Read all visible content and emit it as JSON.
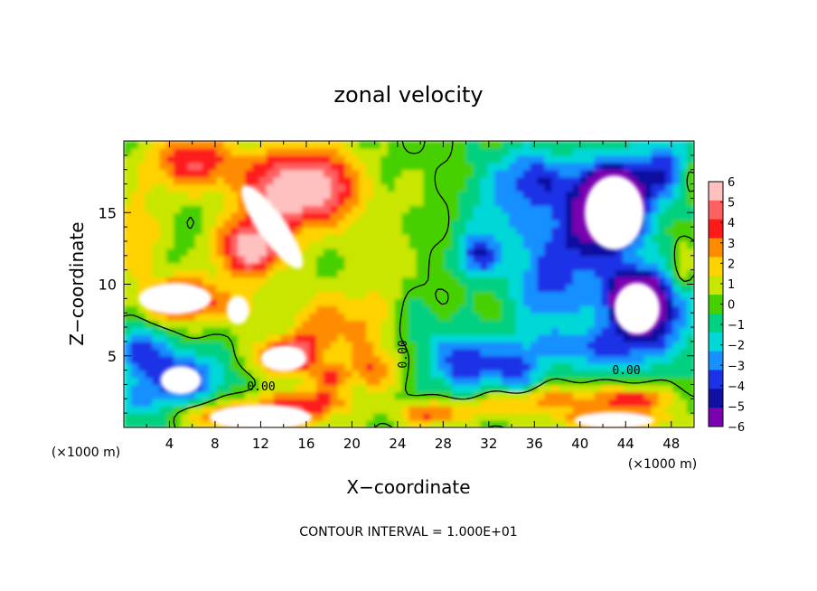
{
  "chart_data": {
    "type": "heatmap",
    "title": "zonal velocity",
    "xlabel": "X−coordinate",
    "ylabel": "Z−coordinate",
    "x_unit_label": "(×1000 m)",
    "y_unit_label": "(×1000 m)",
    "xlim": [
      0,
      50
    ],
    "ylim": [
      0,
      20
    ],
    "x_ticks": [
      "4",
      "8",
      "12",
      "16",
      "20",
      "24",
      "28",
      "32",
      "36",
      "40",
      "44",
      "48"
    ],
    "y_ticks": [
      "5",
      "10",
      "15"
    ],
    "footer": "CONTOUR INTERVAL = 1.000E+01",
    "contour_labels": [
      "0.00",
      "0.00",
      "0.00"
    ],
    "colorbar": {
      "labels": [
        "6",
        "5",
        "4",
        "3",
        "2",
        "1",
        "0",
        "−1",
        "−2",
        "−3",
        "−4",
        "−5",
        "−6"
      ],
      "colors": [
        "#ffc0c0",
        "#ff6060",
        "#ff1a1a",
        "#ff8c00",
        "#ffd200",
        "#c8e600",
        "#46d000",
        "#00d080",
        "#00d8d8",
        "#1890ff",
        "#1c32e6",
        "#1010a0",
        "#7a00b0"
      ],
      "range": [
        -6,
        6
      ]
    },
    "blobs": [
      {
        "x": 14,
        "y": 16.5,
        "v": 6.0,
        "sx": 3.8,
        "sy": 3.0
      },
      {
        "x": 6,
        "y": 18.5,
        "v": 4.5,
        "sx": 4.0,
        "sy": 2.0
      },
      {
        "x": 18,
        "y": 17.0,
        "v": 4.0,
        "sx": 3.0,
        "sy": 2.5
      },
      {
        "x": 11,
        "y": 12.5,
        "v": 6.0,
        "sx": 3.0,
        "sy": 2.0
      },
      {
        "x": 5,
        "y": 9.0,
        "v": 6.0,
        "sx": 3.0,
        "sy": 1.5
      },
      {
        "x": 1,
        "y": 13.5,
        "v": 2.5,
        "sx": 2.5,
        "sy": 3.0
      },
      {
        "x": 14,
        "y": 5.0,
        "v": 6.0,
        "sx": 2.5,
        "sy": 1.2
      },
      {
        "x": 17,
        "y": 7.0,
        "v": 3.0,
        "sx": 2.5,
        "sy": 2.5
      },
      {
        "x": 21,
        "y": 7.0,
        "v": 2.0,
        "sx": 2.5,
        "sy": 2.5
      },
      {
        "x": 10,
        "y": 8.5,
        "v": 2.0,
        "sx": 2.5,
        "sy": 1.5
      },
      {
        "x": 22,
        "y": 4.0,
        "v": 3.0,
        "sx": 2.0,
        "sy": 1.5
      },
      {
        "x": 16,
        "y": 1.8,
        "v": 4.0,
        "sx": 4.0,
        "sy": 0.9
      },
      {
        "x": 9,
        "y": 1.0,
        "v": 2.0,
        "sx": 4.0,
        "sy": 1.0
      },
      {
        "x": 5,
        "y": 3.5,
        "v": -5.0,
        "sx": 3.5,
        "sy": 1.8
      },
      {
        "x": 1.5,
        "y": 5.5,
        "v": -4.0,
        "sx": 2.0,
        "sy": 1.5
      },
      {
        "x": 1,
        "y": 1.5,
        "v": -2.0,
        "sx": 2.5,
        "sy": 1.5
      },
      {
        "x": 22,
        "y": 12.0,
        "v": 1.0,
        "sx": 3.0,
        "sy": 5.0
      },
      {
        "x": 26,
        "y": 16.0,
        "v": 0.5,
        "sx": 3.0,
        "sy": 3.0
      },
      {
        "x": 31,
        "y": 12.0,
        "v": -4.0,
        "sx": 1.6,
        "sy": 1.4
      },
      {
        "x": 33,
        "y": 15.0,
        "v": -2.0,
        "sx": 3.5,
        "sy": 4.0
      },
      {
        "x": 30,
        "y": 4.5,
        "v": -4.5,
        "sx": 3.0,
        "sy": 2.0
      },
      {
        "x": 34.5,
        "y": 4.0,
        "v": -3.5,
        "sx": 2.0,
        "sy": 2.0
      },
      {
        "x": 37,
        "y": 9.5,
        "v": -3.0,
        "sx": 3.0,
        "sy": 3.0
      },
      {
        "x": 41,
        "y": 14.0,
        "v": -5.0,
        "sx": 4.5,
        "sy": 4.0
      },
      {
        "x": 46,
        "y": 8.0,
        "v": -5.0,
        "sx": 4.0,
        "sy": 3.0
      },
      {
        "x": 47.5,
        "y": 18.0,
        "v": -4.0,
        "sx": 2.5,
        "sy": 2.0
      },
      {
        "x": 43,
        "y": 16.0,
        "v": -9.0,
        "sx": 2.6,
        "sy": 2.2
      },
      {
        "x": 45,
        "y": 9.0,
        "v": -9.0,
        "sx": 2.0,
        "sy": 1.5
      },
      {
        "x": 41,
        "y": 5.5,
        "v": -3.0,
        "sx": 5.0,
        "sy": 1.5
      },
      {
        "x": 49,
        "y": 11.0,
        "v": 2.0,
        "sx": 1.0,
        "sy": 2.0
      },
      {
        "x": 49.5,
        "y": 17.5,
        "v": 2.0,
        "sx": 0.8,
        "sy": 1.2
      },
      {
        "x": 38,
        "y": 2.0,
        "v": 3.0,
        "sx": 5.0,
        "sy": 0.9
      },
      {
        "x": 45,
        "y": 2.0,
        "v": 4.0,
        "sx": 3.0,
        "sy": 0.8
      },
      {
        "x": 43,
        "y": 0.6,
        "v": 4.0,
        "sx": 5.0,
        "sy": 0.7
      },
      {
        "x": 27,
        "y": 1.0,
        "v": 4.0,
        "sx": 3.0,
        "sy": 0.8
      },
      {
        "x": 33,
        "y": 1.5,
        "v": 2.0,
        "sx": 3.0,
        "sy": 1.0
      },
      {
        "x": 12.5,
        "y": 0.7,
        "v": 4.0,
        "sx": 5.0,
        "sy": 0.8
      },
      {
        "x": 18,
        "y": 3.5,
        "v": 3.0,
        "sx": 2.0,
        "sy": 1.0
      },
      {
        "x": 26,
        "y": 7.0,
        "v": -1.0,
        "sx": 2.5,
        "sy": 2.0
      },
      {
        "x": 36,
        "y": 17.5,
        "v": -3.0,
        "sx": 3.0,
        "sy": 2.0
      }
    ],
    "white_regions": [
      {
        "x": 13,
        "y": 14.0,
        "rx": 1.2,
        "ry": 3.5,
        "rot": -35
      },
      {
        "x": 4.5,
        "y": 9.0,
        "rx": 3.2,
        "ry": 1.1,
        "rot": 0
      },
      {
        "x": 10,
        "y": 8.2,
        "rx": 1.0,
        "ry": 1.0,
        "rot": 0
      },
      {
        "x": 14,
        "y": 4.8,
        "rx": 2.0,
        "ry": 0.9,
        "rot": 0
      },
      {
        "x": 5,
        "y": 3.3,
        "rx": 1.8,
        "ry": 1.0,
        "rot": 0
      },
      {
        "x": 43,
        "y": 15.0,
        "rx": 2.6,
        "ry": 2.6,
        "rot": 0
      },
      {
        "x": 45,
        "y": 8.3,
        "rx": 2.0,
        "ry": 1.8,
        "rot": 0
      },
      {
        "x": 12,
        "y": 0.7,
        "rx": 4.5,
        "ry": 0.9,
        "rot": 0
      },
      {
        "x": 43,
        "y": 0.5,
        "rx": 3.5,
        "ry": 0.6,
        "rot": 0
      }
    ]
  }
}
